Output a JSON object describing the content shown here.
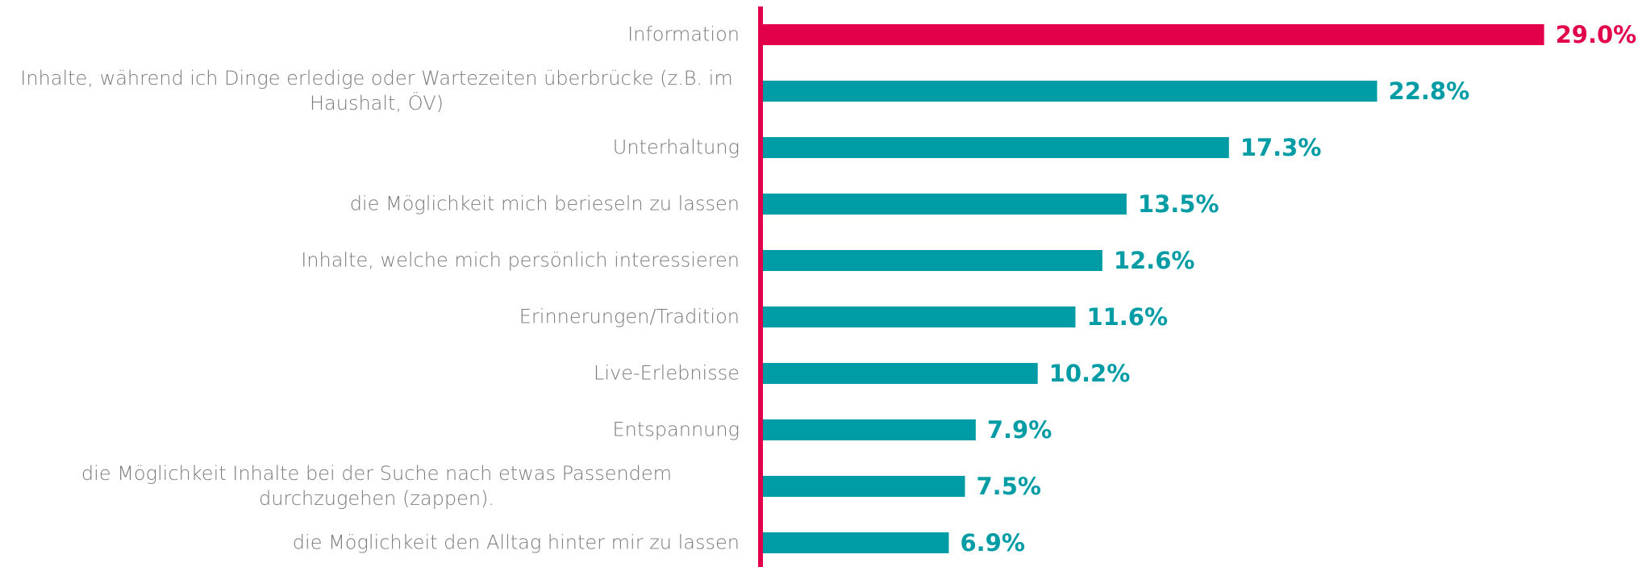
{
  "chart_data": {
    "type": "bar",
    "orientation": "horizontal",
    "categories": [
      "Information",
      "Inhalte, während ich Dinge erledige oder Wartezeiten überbrücke (z.B. im Haushalt, ÖV)",
      "Unterhaltung",
      "die Möglichkeit mich berieseln zu lassen",
      "Inhalte, welche mich persönlich interessieren",
      "Erinnerungen/Tradition",
      "Live-Erlebnisse",
      "Entspannung",
      "die Möglichkeit Inhalte bei der Suche nach etwas Passendem durchzugehen (zappen).",
      "die Möglichkeit den Alltag hinter mir zu lassen"
    ],
    "values": [
      29.0,
      22.8,
      17.3,
      13.5,
      12.6,
      11.6,
      10.2,
      7.9,
      7.5,
      6.9
    ],
    "value_labels": [
      "29.0%",
      "22.8%",
      "17.3%",
      "13.5%",
      "12.6%",
      "11.6%",
      "10.2%",
      "7.9%",
      "7.5%",
      "6.9%"
    ],
    "colors": [
      "#e2004b",
      "#009ca6",
      "#009ca6",
      "#009ca6",
      "#009ca6",
      "#009ca6",
      "#009ca6",
      "#009ca6",
      "#009ca6",
      "#009ca6"
    ],
    "axis_color": "#e2004b"
  }
}
